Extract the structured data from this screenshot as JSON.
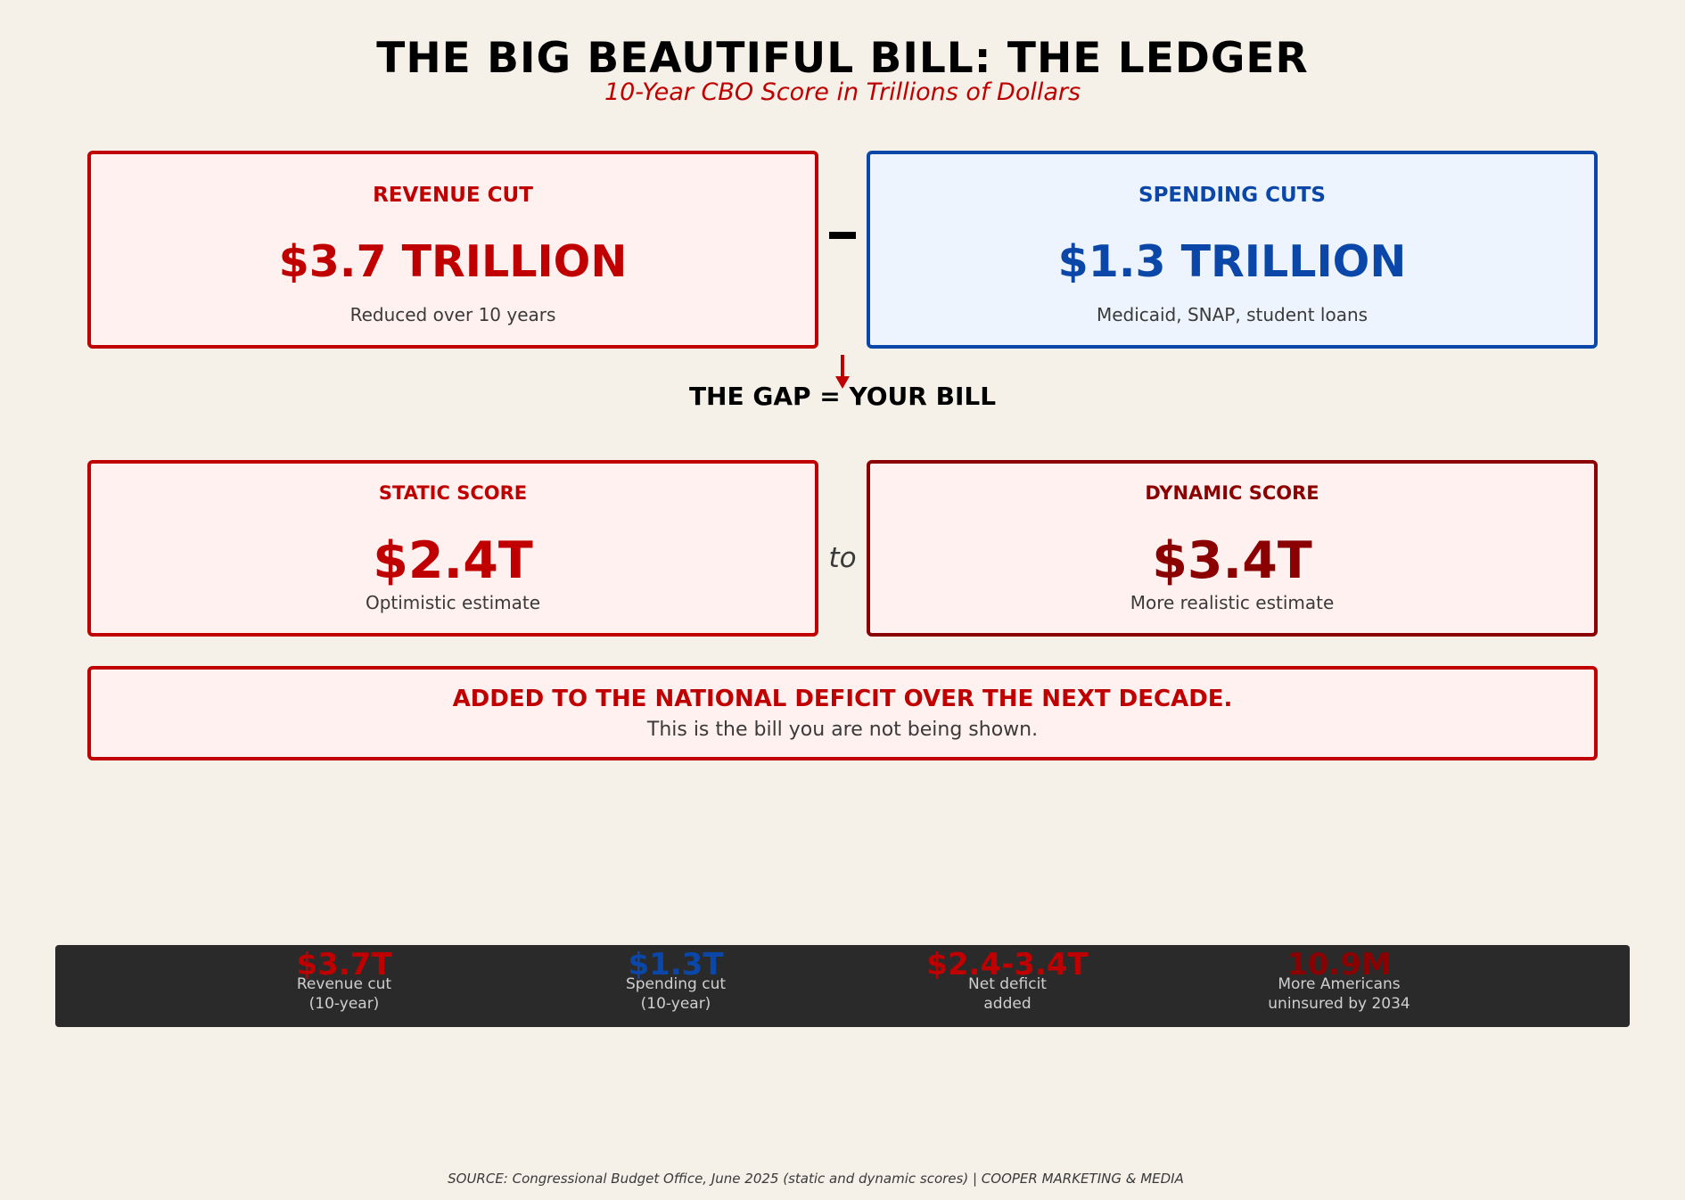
{
  "header": {
    "title": "THE BIG BEAUTIFUL BILL: THE LEDGER",
    "subtitle": "10-Year CBO Score in Trillions of Dollars"
  },
  "revenue_card": {
    "heading": "REVENUE CUT",
    "amount": "$3.7 TRILLION",
    "note": "Reduced over 10 years"
  },
  "spending_card": {
    "heading": "SPENDING CUTS",
    "amount": "$1.3 TRILLION",
    "note": "Medicaid, SNAP, student loans"
  },
  "gap_label": "THE GAP = YOUR BILL",
  "static_card": {
    "heading": "STATIC SCORE",
    "amount": "$2.4T",
    "note": "Optimistic estimate"
  },
  "range_word": "to",
  "dynamic_card": {
    "heading": "DYNAMIC SCORE",
    "amount": "$3.4T",
    "note": "More realistic estimate"
  },
  "deficit_card": {
    "headline": "ADDED TO THE NATIONAL DEFICIT OVER THE NEXT DECADE.",
    "note": "This is the bill you are not being shown."
  },
  "stats": [
    {
      "value": "$3.7T",
      "label": "Revenue cut\n(10-year)",
      "color": "#c00000"
    },
    {
      "value": "$1.3T",
      "label": "Spending cut\n(10-year)",
      "color": "#0a47a8"
    },
    {
      "value": "$2.4-3.4T",
      "label": "Net deficit\nadded",
      "color": "#c00000"
    },
    {
      "value": "10.9M",
      "label": "More Americans\nuninsured by 2034",
      "color": "#8b0000"
    }
  ],
  "source": "SOURCE: Congressional Budget Office, June 2025 (static and dynamic scores)  |  COOPER MARKETING & MEDIA",
  "colors": {
    "background": "#f5f0e8",
    "red": "#c00000",
    "blue": "#0a47a8",
    "dark_red": "#8b0000",
    "stats_bar": "#2a2a2a"
  }
}
